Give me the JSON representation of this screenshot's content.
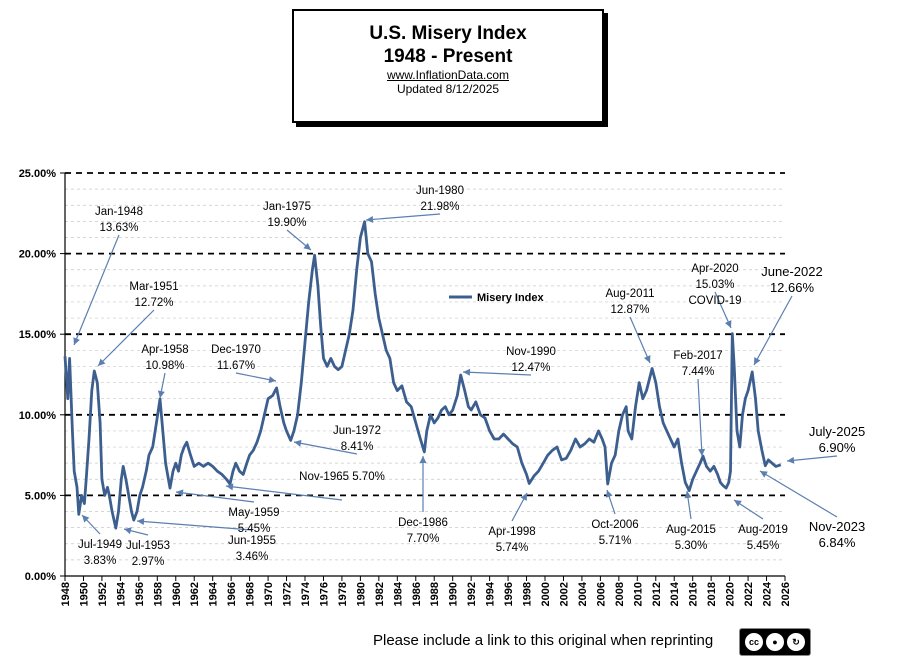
{
  "header": {
    "title_line1": "U.S. Misery Index",
    "title_line2": "1948 - Present",
    "website": "www.InflationData.com",
    "updated": "Updated  8/12/2025"
  },
  "footer": {
    "text": "Please include a link to this original when reprinting",
    "license_badge": "cc by sa"
  },
  "chart_data": {
    "type": "line",
    "title": "U.S. Misery Index 1948 - Present",
    "xlabel": "",
    "ylabel": "",
    "xlim": [
      1948,
      2026
    ],
    "ylim": [
      0,
      25
    ],
    "grid": true,
    "line_color": "#3D5F8F",
    "yticks": [
      0,
      5,
      10,
      15,
      20,
      25
    ],
    "ytick_labels": [
      "0.00%",
      "5.00%",
      "10.00%",
      "15.00%",
      "20.00%",
      "25.00%"
    ],
    "xticks": [
      "1948",
      "1950",
      "1952",
      "1954",
      "1956",
      "1958",
      "1960",
      "1962",
      "1964",
      "1966",
      "1968",
      "1970",
      "1972",
      "1974",
      "1976",
      "1978",
      "1980",
      "1982",
      "1984",
      "1986",
      "1988",
      "1990",
      "1992",
      "1994",
      "1996",
      "1998",
      "2000",
      "2002",
      "2004",
      "2006",
      "2008",
      "2010",
      "2012",
      "2014",
      "2016",
      "2018",
      "2020",
      "2022",
      "2024",
      "2026"
    ],
    "legend": {
      "label": "Misery Index",
      "position": "center"
    },
    "series": [
      {
        "name": "Misery Index",
        "points": [
          [
            1948.0,
            13.63
          ],
          [
            1948.3,
            11.0
          ],
          [
            1948.5,
            13.5
          ],
          [
            1948.8,
            9.0
          ],
          [
            1949.0,
            6.5
          ],
          [
            1949.3,
            5.5
          ],
          [
            1949.5,
            3.83
          ],
          [
            1949.8,
            5.0
          ],
          [
            1950.1,
            4.5
          ],
          [
            1950.3,
            6.0
          ],
          [
            1950.6,
            8.5
          ],
          [
            1950.9,
            11.5
          ],
          [
            1951.17,
            12.72
          ],
          [
            1951.5,
            12.0
          ],
          [
            1951.8,
            9.5
          ],
          [
            1952.0,
            6.0
          ],
          [
            1952.3,
            5.0
          ],
          [
            1952.6,
            5.5
          ],
          [
            1952.8,
            5.0
          ],
          [
            1953.1,
            4.0
          ],
          [
            1953.5,
            2.97
          ],
          [
            1953.8,
            4.0
          ],
          [
            1954.1,
            6.0
          ],
          [
            1954.3,
            6.8
          ],
          [
            1954.6,
            6.0
          ],
          [
            1954.9,
            5.0
          ],
          [
            1955.2,
            4.0
          ],
          [
            1955.45,
            3.46
          ],
          [
            1955.8,
            4.0
          ],
          [
            1956.1,
            5.0
          ],
          [
            1956.4,
            5.5
          ],
          [
            1956.8,
            6.5
          ],
          [
            1957.1,
            7.5
          ],
          [
            1957.5,
            8.0
          ],
          [
            1957.9,
            9.5
          ],
          [
            1958.29,
            10.98
          ],
          [
            1958.6,
            9.0
          ],
          [
            1958.9,
            7.0
          ],
          [
            1959.37,
            5.45
          ],
          [
            1959.7,
            6.5
          ],
          [
            1960.0,
            7.0
          ],
          [
            1960.3,
            6.5
          ],
          [
            1960.6,
            7.5
          ],
          [
            1960.9,
            8.0
          ],
          [
            1961.2,
            8.3
          ],
          [
            1961.6,
            7.5
          ],
          [
            1962.0,
            6.8
          ],
          [
            1962.5,
            7.0
          ],
          [
            1963.0,
            6.8
          ],
          [
            1963.5,
            7.0
          ],
          [
            1964.0,
            6.8
          ],
          [
            1964.5,
            6.5
          ],
          [
            1965.0,
            6.3
          ],
          [
            1965.5,
            6.0
          ],
          [
            1965.87,
            5.7
          ],
          [
            1966.2,
            6.5
          ],
          [
            1966.5,
            7.0
          ],
          [
            1966.9,
            6.5
          ],
          [
            1967.3,
            6.3
          ],
          [
            1967.7,
            7.0
          ],
          [
            1968.0,
            7.5
          ],
          [
            1968.4,
            7.8
          ],
          [
            1968.8,
            8.3
          ],
          [
            1969.2,
            9.0
          ],
          [
            1969.6,
            10.0
          ],
          [
            1970.0,
            11.0
          ],
          [
            1970.5,
            11.2
          ],
          [
            1970.92,
            11.67
          ],
          [
            1971.3,
            10.5
          ],
          [
            1971.7,
            9.5
          ],
          [
            1972.0,
            9.0
          ],
          [
            1972.45,
            8.41
          ],
          [
            1972.8,
            9.0
          ],
          [
            1973.2,
            10.0
          ],
          [
            1973.6,
            12.0
          ],
          [
            1974.0,
            14.5
          ],
          [
            1974.4,
            17.0
          ],
          [
            1974.8,
            19.0
          ],
          [
            1975.04,
            19.9
          ],
          [
            1975.4,
            18.0
          ],
          [
            1975.7,
            15.5
          ],
          [
            1976.0,
            13.5
          ],
          [
            1976.4,
            13.0
          ],
          [
            1976.8,
            13.5
          ],
          [
            1977.2,
            13.0
          ],
          [
            1977.6,
            12.8
          ],
          [
            1978.0,
            13.0
          ],
          [
            1978.4,
            14.0
          ],
          [
            1978.8,
            15.0
          ],
          [
            1979.2,
            16.5
          ],
          [
            1979.6,
            19.0
          ],
          [
            1980.0,
            21.0
          ],
          [
            1980.46,
            21.98
          ],
          [
            1980.8,
            20.0
          ],
          [
            1981.2,
            19.5
          ],
          [
            1981.6,
            17.5
          ],
          [
            1982.0,
            16.0
          ],
          [
            1982.4,
            15.0
          ],
          [
            1982.8,
            14.0
          ],
          [
            1983.2,
            13.5
          ],
          [
            1983.6,
            12.0
          ],
          [
            1984.0,
            11.5
          ],
          [
            1984.5,
            11.8
          ],
          [
            1985.0,
            10.8
          ],
          [
            1985.5,
            10.5
          ],
          [
            1986.0,
            9.5
          ],
          [
            1986.5,
            8.5
          ],
          [
            1986.92,
            7.7
          ],
          [
            1987.2,
            9.0
          ],
          [
            1987.6,
            10.0
          ],
          [
            1988.0,
            9.5
          ],
          [
            1988.4,
            9.8
          ],
          [
            1988.8,
            10.3
          ],
          [
            1989.2,
            10.5
          ],
          [
            1989.6,
            10.0
          ],
          [
            1990.0,
            10.3
          ],
          [
            1990.5,
            11.2
          ],
          [
            1990.87,
            12.47
          ],
          [
            1991.3,
            11.5
          ],
          [
            1991.7,
            10.5
          ],
          [
            1992.0,
            10.3
          ],
          [
            1992.5,
            10.8
          ],
          [
            1993.0,
            10.0
          ],
          [
            1993.5,
            9.8
          ],
          [
            1994.0,
            9.0
          ],
          [
            1994.5,
            8.5
          ],
          [
            1995.0,
            8.5
          ],
          [
            1995.5,
            8.8
          ],
          [
            1996.0,
            8.5
          ],
          [
            1996.5,
            8.2
          ],
          [
            1997.0,
            8.0
          ],
          [
            1997.5,
            7.0
          ],
          [
            1998.0,
            6.3
          ],
          [
            1998.29,
            5.74
          ],
          [
            1998.8,
            6.2
          ],
          [
            1999.3,
            6.5
          ],
          [
            1999.8,
            7.0
          ],
          [
            2000.3,
            7.5
          ],
          [
            2000.8,
            7.8
          ],
          [
            2001.3,
            8.0
          ],
          [
            2001.8,
            7.2
          ],
          [
            2002.3,
            7.3
          ],
          [
            2002.8,
            7.8
          ],
          [
            2003.3,
            8.5
          ],
          [
            2003.8,
            8.0
          ],
          [
            2004.3,
            8.2
          ],
          [
            2004.8,
            8.5
          ],
          [
            2005.3,
            8.3
          ],
          [
            2005.8,
            9.0
          ],
          [
            2006.2,
            8.5
          ],
          [
            2006.5,
            8.0
          ],
          [
            2006.79,
            5.71
          ],
          [
            2007.2,
            7.0
          ],
          [
            2007.6,
            7.5
          ],
          [
            2008.0,
            9.0
          ],
          [
            2008.4,
            10.0
          ],
          [
            2008.8,
            10.5
          ],
          [
            2009.0,
            9.0
          ],
          [
            2009.4,
            8.5
          ],
          [
            2009.8,
            10.5
          ],
          [
            2010.2,
            12.0
          ],
          [
            2010.6,
            11.0
          ],
          [
            2011.0,
            11.5
          ],
          [
            2011.6,
            12.87
          ],
          [
            2012.0,
            12.0
          ],
          [
            2012.4,
            10.5
          ],
          [
            2012.8,
            9.5
          ],
          [
            2013.2,
            9.0
          ],
          [
            2013.6,
            8.5
          ],
          [
            2014.0,
            8.0
          ],
          [
            2014.4,
            8.5
          ],
          [
            2014.8,
            7.0
          ],
          [
            2015.2,
            5.8
          ],
          [
            2015.62,
            5.3
          ],
          [
            2016.0,
            6.0
          ],
          [
            2016.4,
            6.5
          ],
          [
            2016.8,
            7.0
          ],
          [
            2017.12,
            7.44
          ],
          [
            2017.5,
            6.8
          ],
          [
            2017.9,
            6.5
          ],
          [
            2018.3,
            6.8
          ],
          [
            2018.7,
            6.3
          ],
          [
            2019.0,
            5.8
          ],
          [
            2019.3,
            5.6
          ],
          [
            2019.62,
            5.45
          ],
          [
            2019.9,
            5.8
          ],
          [
            2020.1,
            6.5
          ],
          [
            2020.29,
            15.03
          ],
          [
            2020.5,
            13.0
          ],
          [
            2020.8,
            9.0
          ],
          [
            2021.1,
            8.0
          ],
          [
            2021.4,
            10.0
          ],
          [
            2021.7,
            11.0
          ],
          [
            2022.0,
            11.5
          ],
          [
            2022.45,
            12.66
          ],
          [
            2022.8,
            11.0
          ],
          [
            2023.1,
            9.0
          ],
          [
            2023.5,
            7.8
          ],
          [
            2023.87,
            6.84
          ],
          [
            2024.2,
            7.2
          ],
          [
            2024.6,
            7.0
          ],
          [
            2025.0,
            6.8
          ],
          [
            2025.54,
            6.9
          ]
        ]
      }
    ],
    "annotations": [
      {
        "label": "Jan-1948",
        "value": "13.63%",
        "x": 1948.0,
        "y": 13.63
      },
      {
        "label": "Jul-1949",
        "value": "3.83%",
        "x": 1949.5,
        "y": 3.83
      },
      {
        "label": "Mar-1951",
        "value": "12.72%",
        "x": 1951.17,
        "y": 12.72
      },
      {
        "label": "Jul-1953",
        "value": "2.97%",
        "x": 1953.5,
        "y": 2.97
      },
      {
        "label": "Jun-1955",
        "value": "3.46%",
        "x": 1955.45,
        "y": 3.46
      },
      {
        "label": "Apr-1958",
        "value": "10.98%",
        "x": 1958.29,
        "y": 10.98
      },
      {
        "label": "May-1959",
        "value": "5.45%",
        "x": 1959.37,
        "y": 5.45
      },
      {
        "label": "Nov-1965",
        "value": "5.70%",
        "x": 1965.87,
        "y": 5.7
      },
      {
        "label": "Dec-1970",
        "value": "11.67%",
        "x": 1970.92,
        "y": 11.67
      },
      {
        "label": "Jun-1972",
        "value": "8.41%",
        "x": 1972.45,
        "y": 8.41
      },
      {
        "label": "Jan-1975",
        "value": "19.90%",
        "x": 1975.04,
        "y": 19.9
      },
      {
        "label": "Jun-1980",
        "value": "21.98%",
        "x": 1980.46,
        "y": 21.98
      },
      {
        "label": "Dec-1986",
        "value": "7.70%",
        "x": 1986.92,
        "y": 7.7
      },
      {
        "label": "Nov-1990",
        "value": "12.47%",
        "x": 1990.87,
        "y": 12.47
      },
      {
        "label": "Apr-1998",
        "value": "5.74%",
        "x": 1998.29,
        "y": 5.74
      },
      {
        "label": "Oct-2006",
        "value": "5.71%",
        "x": 2006.79,
        "y": 5.71
      },
      {
        "label": "Aug-2011",
        "value": "12.87%",
        "x": 2011.6,
        "y": 12.87
      },
      {
        "label": "Aug-2015",
        "value": "5.30%",
        "x": 2015.62,
        "y": 5.3
      },
      {
        "label": "Feb-2017",
        "value": "7.44%",
        "x": 2017.12,
        "y": 7.44
      },
      {
        "label": "Aug-2019",
        "value": "5.45%",
        "x": 2019.62,
        "y": 5.45
      },
      {
        "label": "Apr-2020",
        "value": "15.03%",
        "extra": "COVID-19",
        "x": 2020.29,
        "y": 15.03
      },
      {
        "label": "June-2022",
        "value": "12.66%",
        "x": 2022.45,
        "y": 12.66
      },
      {
        "label": "Nov-2023",
        "value": "6.84%",
        "x": 2023.87,
        "y": 6.84
      },
      {
        "label": "July-2025",
        "value": "6.90%",
        "x": 2025.54,
        "y": 6.9
      }
    ]
  }
}
